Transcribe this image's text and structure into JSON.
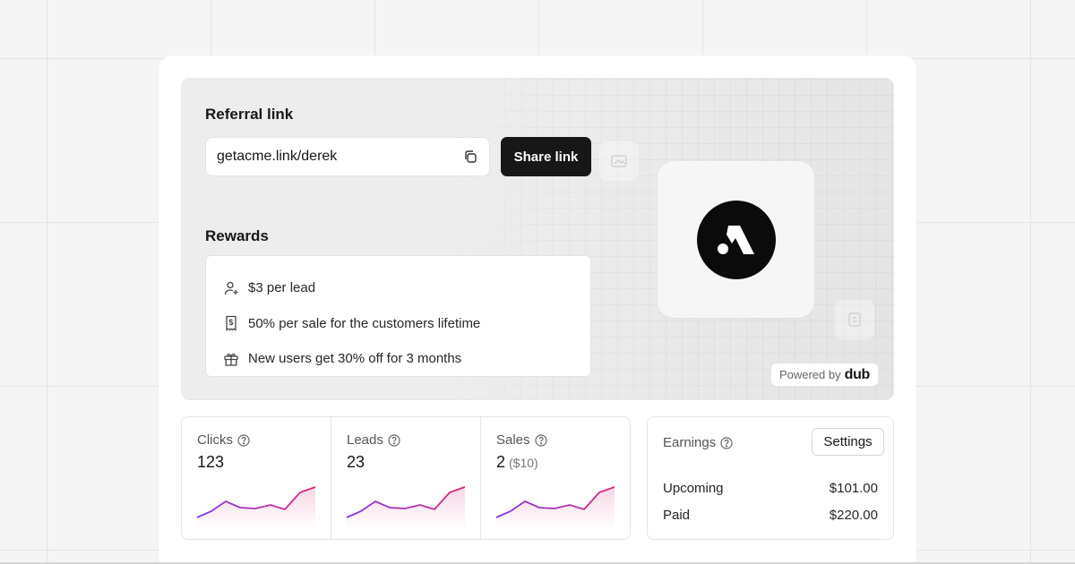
{
  "referral": {
    "title": "Referral link",
    "link": "getacme.link/derek",
    "share_label": "Share link"
  },
  "rewards": {
    "title": "Rewards",
    "items": [
      {
        "icon": "user-plus-icon",
        "label": "$3 per lead"
      },
      {
        "icon": "receipt-dollar-icon",
        "label": "50% per sale for the customers lifetime"
      },
      {
        "icon": "gift-icon",
        "label": "New users get 30% off for 3 months"
      }
    ]
  },
  "powered": {
    "label": "Powered by",
    "brand": "dub"
  },
  "stats": [
    {
      "label": "Clicks",
      "value": "123",
      "sub": ""
    },
    {
      "label": "Leads",
      "value": "23",
      "sub": ""
    },
    {
      "label": "Sales",
      "value": "2",
      "sub": "($10)"
    }
  ],
  "earnings": {
    "label": "Earnings",
    "settings_label": "Settings",
    "rows": [
      {
        "label": "Upcoming",
        "value": "$101.00"
      },
      {
        "label": "Paid",
        "value": "$220.00"
      }
    ]
  },
  "colors": {
    "accent_start": "#7c3aed",
    "accent_end": "#db2777",
    "button": "#171717"
  }
}
